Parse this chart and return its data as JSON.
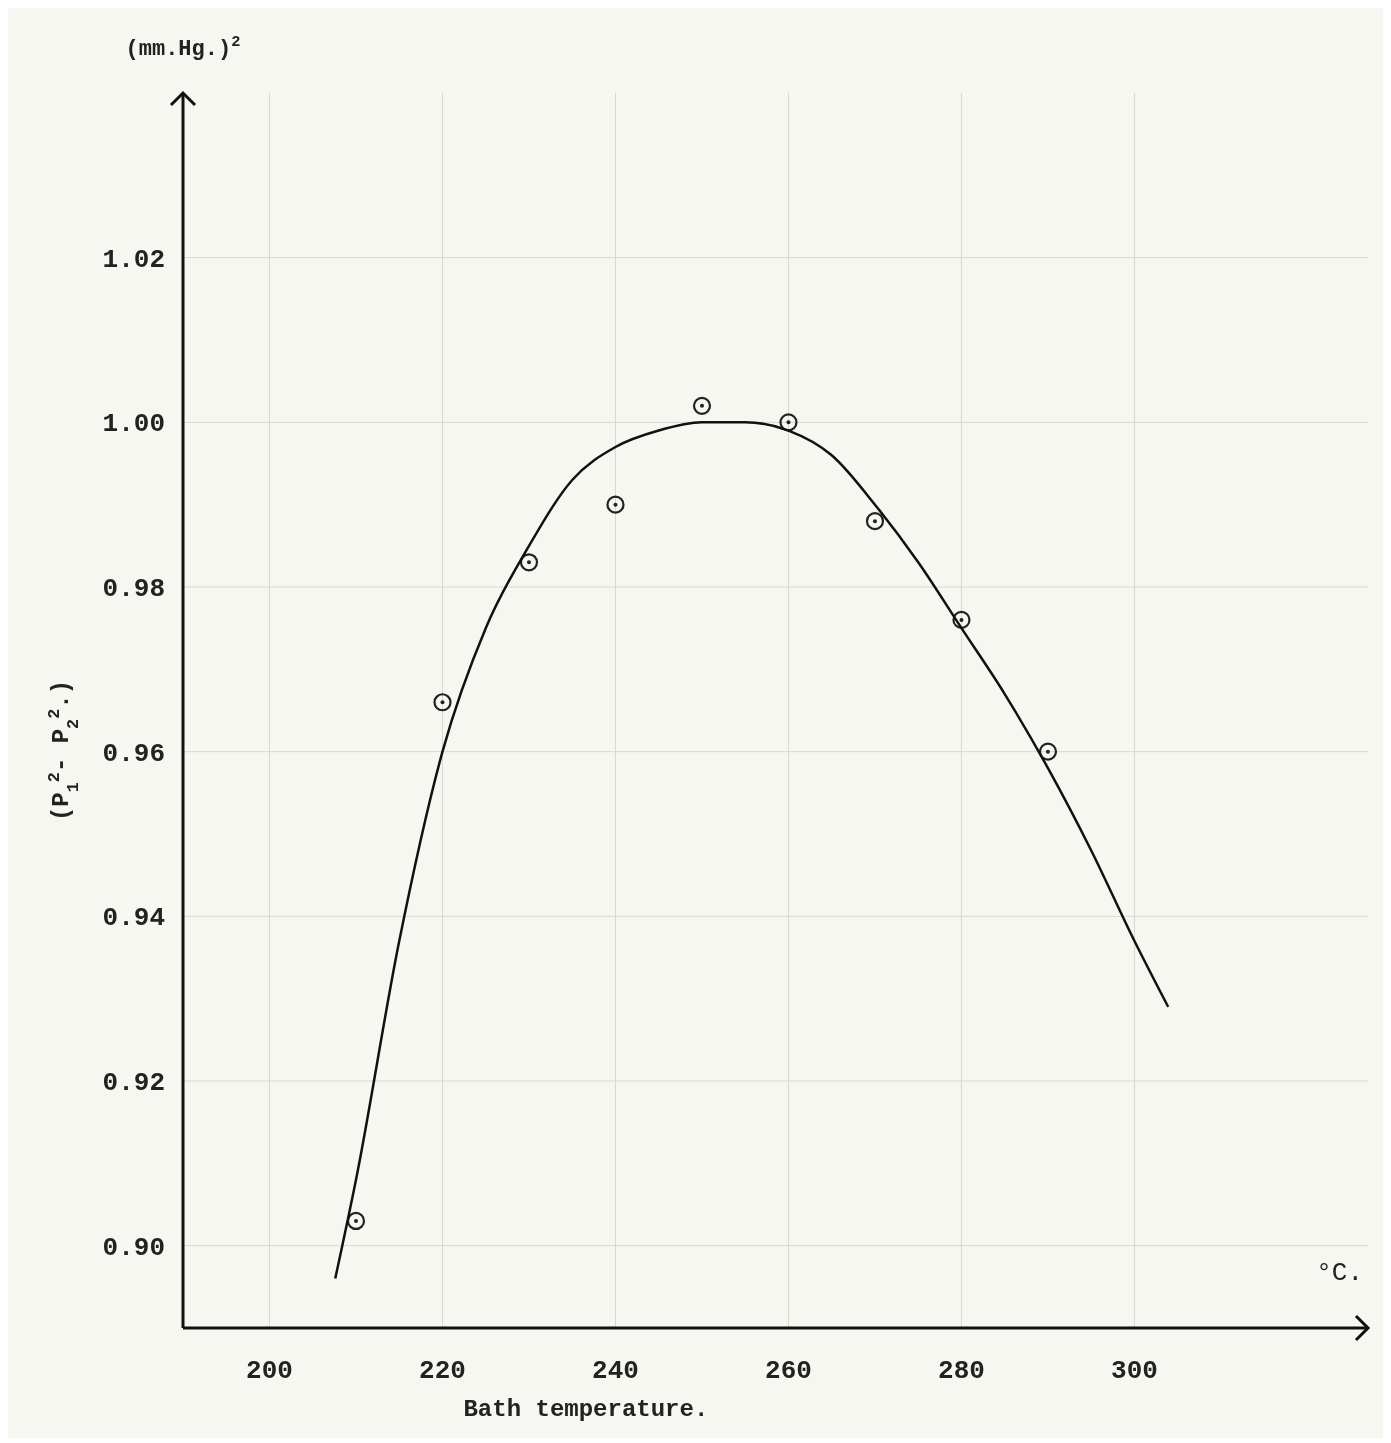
{
  "chart_data": {
    "type": "scatter",
    "xlabel": "Bath temperature.",
    "ylabel": "(P$_{1}$$^{2}$- P$_{2}$$^{2}$.)",
    "annotations": [
      "(mm.Hg.)$^{2}$",
      "°C."
    ],
    "xlim": [
      190,
      327
    ],
    "ylim": [
      0.89,
      1.04
    ],
    "xticks": [
      200,
      220,
      240,
      260,
      280,
      300
    ],
    "yticks": [
      {
        "value": 0.9,
        "label": "0.90"
      },
      {
        "value": 0.92,
        "label": "0.92"
      },
      0.94,
      0.96,
      0.98,
      {
        "value": 1.0,
        "label": "1.00"
      },
      1.02
    ],
    "grid": true,
    "marker": "circle",
    "series": [
      {
        "color": "#222222",
        "x": [
          210,
          220,
          230,
          240,
          250,
          260,
          270,
          280,
          290
        ],
        "values": [
          0.903,
          0.966,
          0.983,
          0.99,
          1.002,
          1.0,
          0.988,
          0.976,
          0.96
        ]
      },
      {
        "type": "line",
        "color": "#111111",
        "line_style": "solid",
        "marker": "none",
        "x": [
          207.6,
          210,
          215,
          220,
          225,
          230,
          235,
          240,
          245,
          250,
          255,
          260,
          265,
          270,
          275,
          280,
          285,
          290,
          295,
          300,
          303.9
        ],
        "values": [
          0.896,
          0.908,
          0.937,
          0.96,
          0.975,
          0.985,
          0.993,
          0.997,
          0.999,
          1.0,
          1.0,
          0.999,
          0.996,
          0.99,
          0.983,
          0.975,
          0.967,
          0.958,
          0.948,
          0.937,
          0.929
        ]
      }
    ]
  }
}
